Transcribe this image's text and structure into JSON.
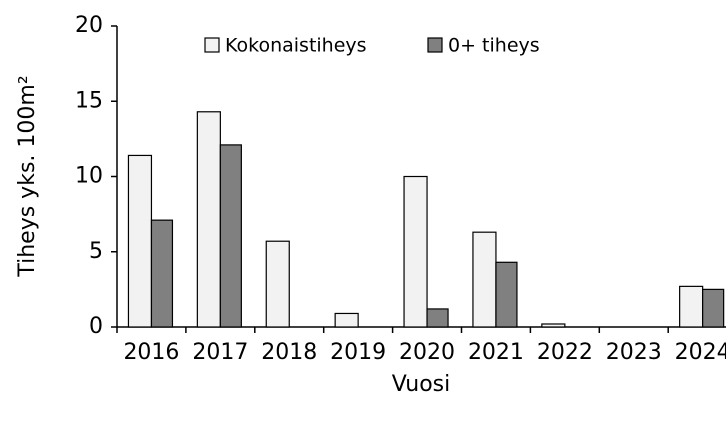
{
  "chart_data": {
    "type": "bar",
    "y_label": "Tiheys yks. 100m²",
    "x_label": "Vuosi",
    "categories": [
      "2016",
      "2017",
      "2018",
      "2019",
      "2020",
      "2021",
      "2022",
      "2023",
      "2024"
    ],
    "series": [
      {
        "name": "Kokonaistiheys",
        "color": "#f2f2f2",
        "values": [
          11.4,
          14.3,
          5.7,
          0.9,
          10.0,
          6.3,
          0.2,
          0,
          2.7
        ]
      },
      {
        "name": "0+ tiheys",
        "color": "#808080",
        "values": [
          7.1,
          12.1,
          0,
          0,
          1.2,
          4.3,
          0,
          0,
          2.5
        ]
      }
    ],
    "ylim": [
      0,
      20
    ],
    "yticks": [
      0,
      5,
      10,
      15,
      20
    ],
    "grid": false,
    "legend": "top"
  }
}
